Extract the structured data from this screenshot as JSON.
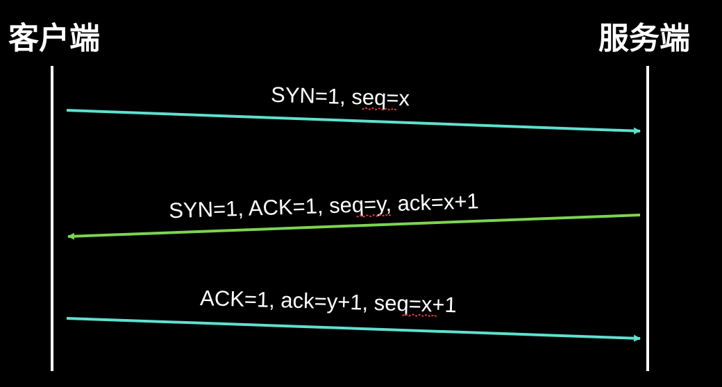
{
  "colors": {
    "background": "#000000",
    "lifeline": "#ffffff",
    "text": "#ffffff",
    "arrow_teal": "#5fe0cf",
    "arrow_green": "#7dd44f",
    "spellcheck": "#e23b3b"
  },
  "actors": {
    "client": "客户端",
    "server": "服务端"
  },
  "messages": [
    {
      "label_a": "SYN=1, ",
      "label_underlined": "seq",
      "label_b": "=x",
      "direction": "client-to-server",
      "color": "#5fe0cf"
    },
    {
      "label_a": "SYN=1, ACK=1, ",
      "label_underlined": "seq",
      "label_b": "=y, ack=x+1",
      "direction": "server-to-client",
      "color": "#7dd44f"
    },
    {
      "label_a": "ACK=1, ack=y+1, ",
      "label_underlined": "seq",
      "label_b": "=x+1",
      "direction": "client-to-server",
      "color": "#5fe0cf"
    }
  ]
}
